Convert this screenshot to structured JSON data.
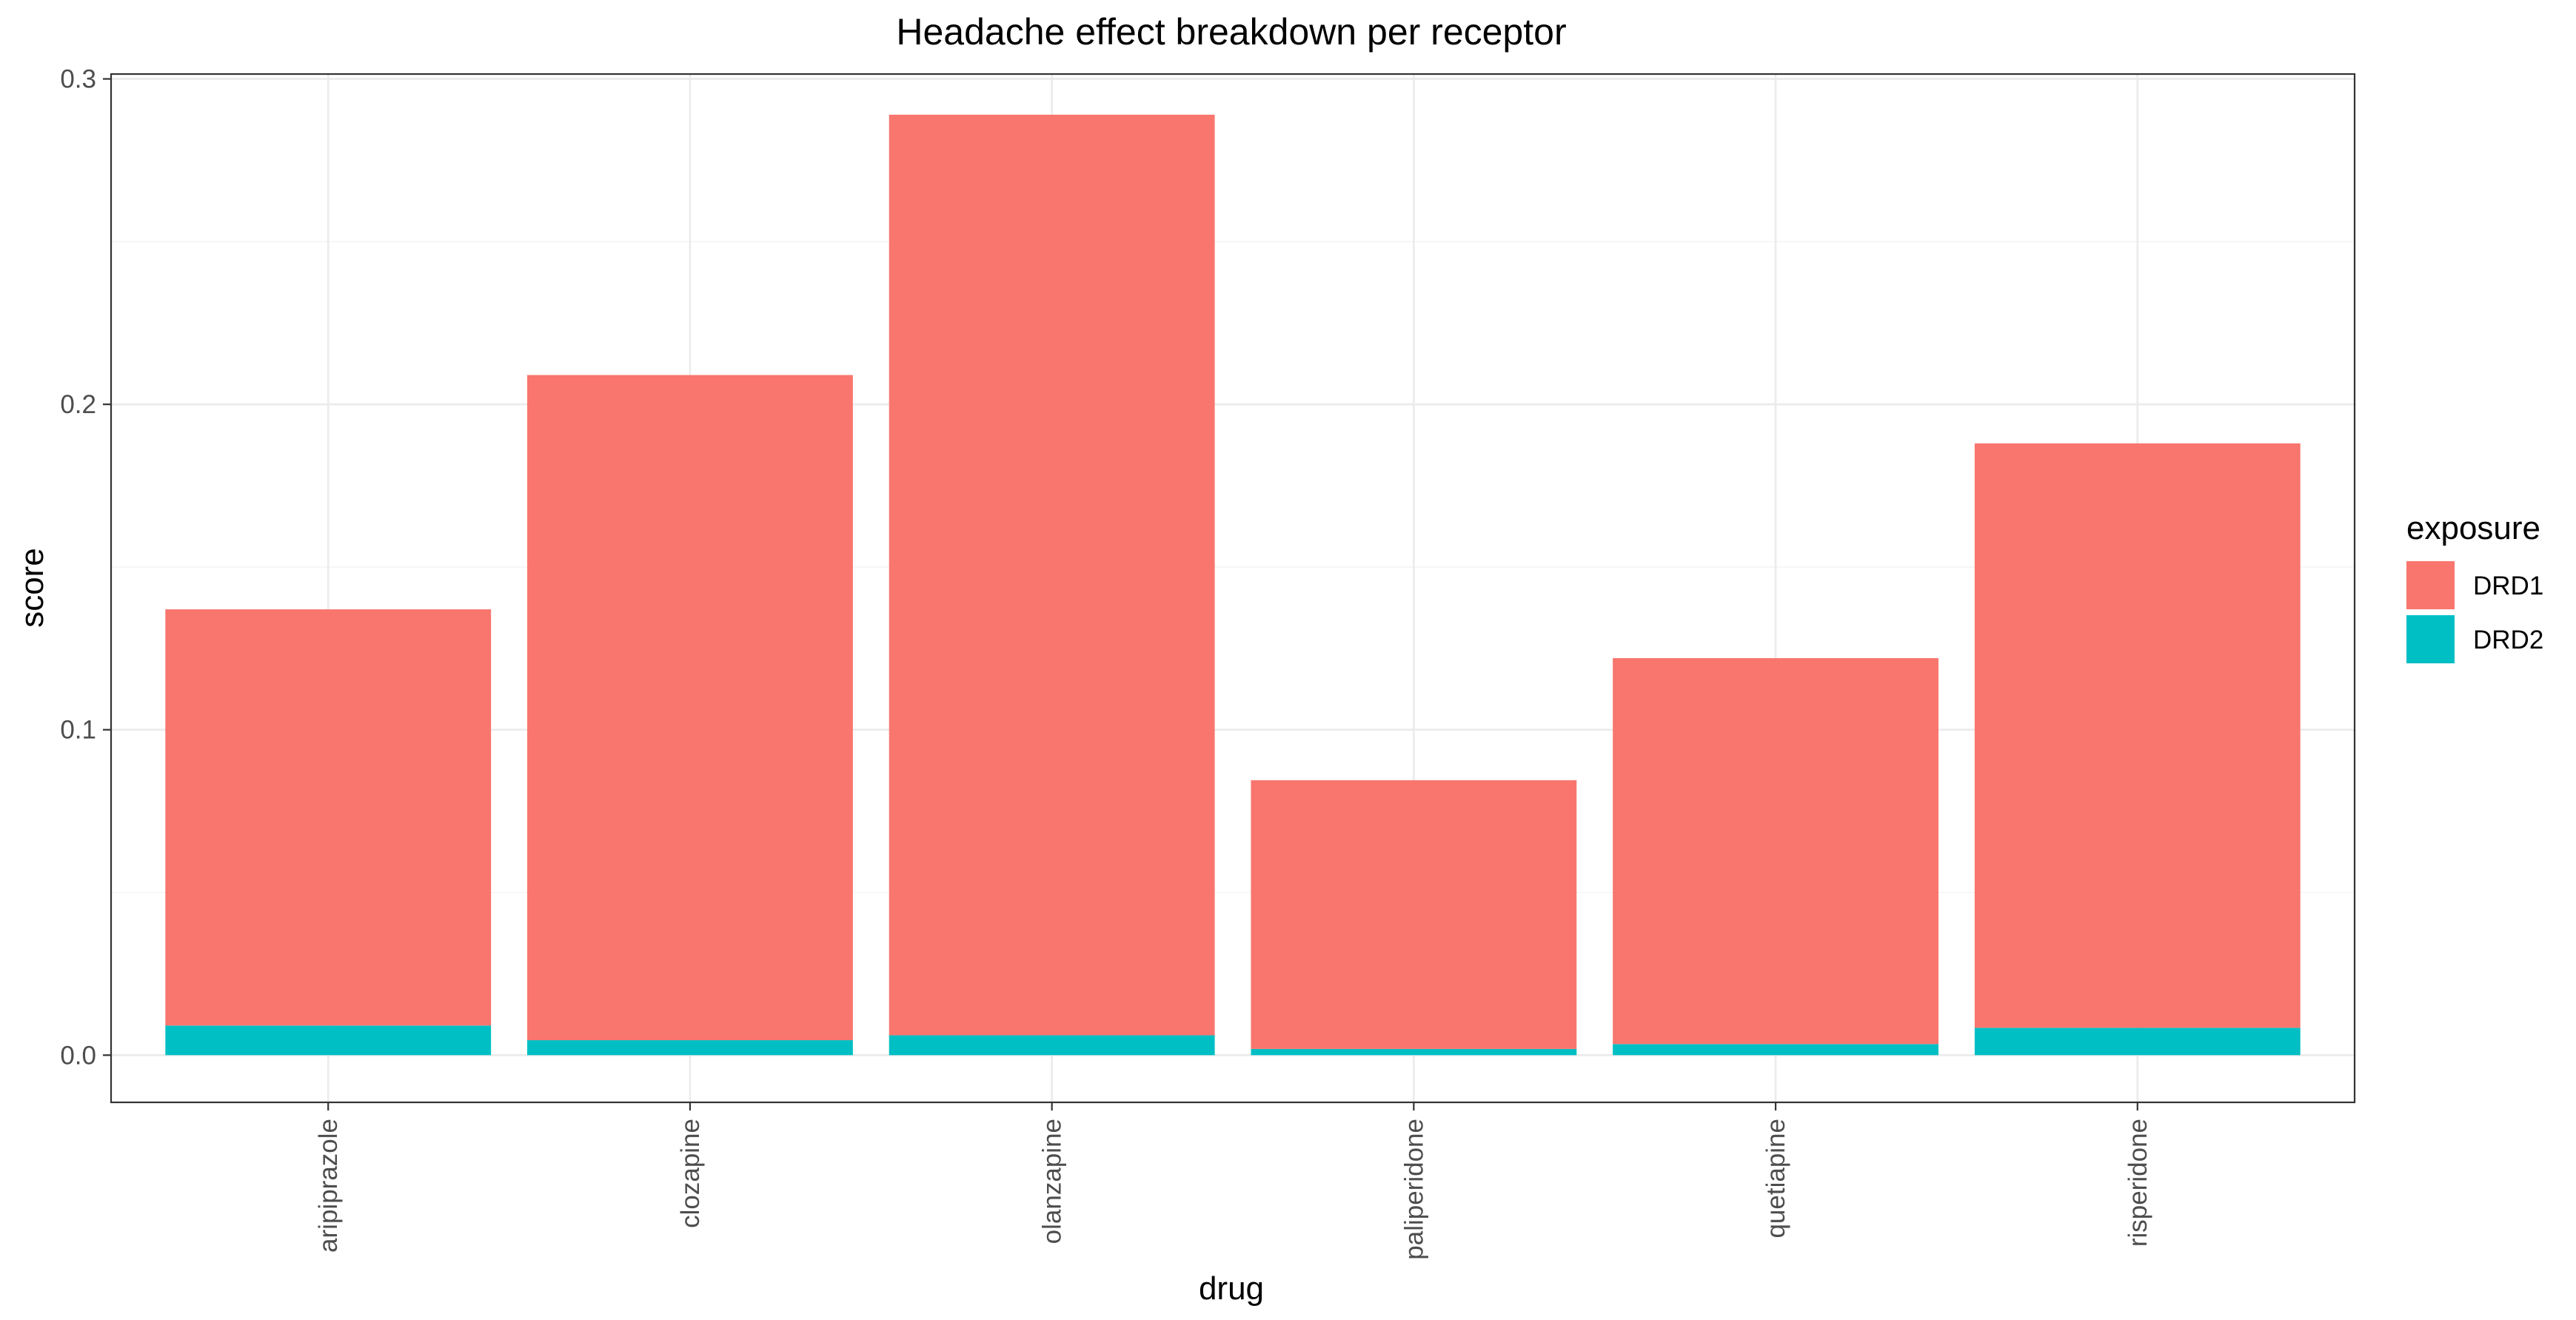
{
  "chart_data": {
    "type": "bar",
    "stacked": true,
    "title": "Headache effect breakdown per receptor",
    "xlabel": "drug",
    "ylabel": "score",
    "categories": [
      "aripiprazole",
      "clozapine",
      "olanzapine",
      "paliperidone",
      "quetiapine",
      "risperidone"
    ],
    "series": [
      {
        "name": "DRD2",
        "color": "#00BFC4",
        "values": [
          0.0091,
          0.0046,
          0.0061,
          0.0019,
          0.0034,
          0.0084
        ]
      },
      {
        "name": "DRD1",
        "color": "#F8766D",
        "values": [
          0.1279,
          0.2044,
          0.2829,
          0.0826,
          0.1186,
          0.1796
        ]
      }
    ],
    "ylim": [
      -0.0145,
      0.3015
    ],
    "yticks": [
      0.0,
      0.1,
      0.2,
      0.3
    ],
    "ytick_labels": [
      "0.0",
      "0.1",
      "0.2",
      "0.3"
    ],
    "grid": true,
    "legend": {
      "title": "exposure",
      "placement": "right",
      "entries": [
        {
          "label": "DRD1",
          "color": "#F8766D"
        },
        {
          "label": "DRD2",
          "color": "#00BFC4"
        }
      ]
    }
  }
}
